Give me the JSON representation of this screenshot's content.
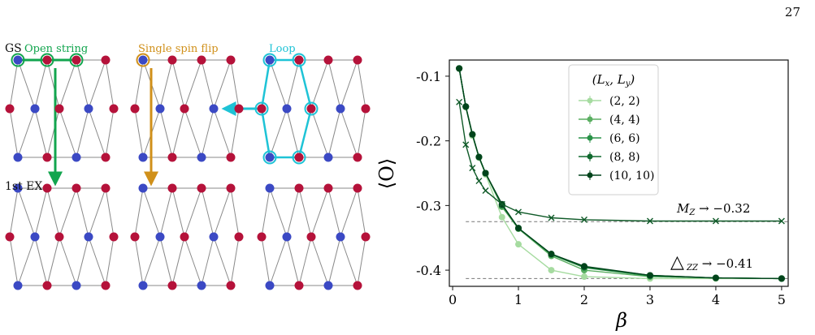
{
  "page_number": "27",
  "panel_a": {
    "gs_label": "GS",
    "ex_label": "1st EX",
    "open_string_label": "Open string",
    "spin_flip_label": "Single spin flip",
    "loop_label": "Loop",
    "colors": {
      "red_site": "#b5123a",
      "blue_site": "#3b49c4",
      "bond": "#8a8a8a",
      "open_string": "#12a54e",
      "spin_flip": "#d0901a",
      "loop": "#1ec3d6"
    }
  },
  "chart_data": {
    "type": "line",
    "xlabel": "β",
    "ylabel": "⟨O⟩",
    "xlim": [
      -0.05,
      5.1
    ],
    "ylim": [
      -0.425,
      -0.075
    ],
    "xticks": [
      0,
      1,
      2,
      3,
      4,
      5
    ],
    "yticks": [
      -0.1,
      -0.2,
      -0.3,
      -0.4
    ],
    "ytick_labels": [
      "-0.1",
      "-0.2",
      "-0.3",
      "-0.4"
    ],
    "legend": {
      "title": "(Lx, Ly)",
      "placement": "top-center",
      "entries": [
        "(2, 2)",
        "(4, 4)",
        "(6, 6)",
        "(8, 8)",
        "(10, 10)"
      ]
    },
    "annotations": [
      {
        "text": "M_Z → −0.32",
        "value": -0.325
      },
      {
        "text": "△_ZZ → −0.41",
        "value": -0.413
      }
    ],
    "series": [
      {
        "name": "(2, 2)",
        "marker": "circle",
        "color": "#a6dba0",
        "x": [
          0.1,
          0.2,
          0.3,
          0.4,
          0.5,
          0.75,
          1.0,
          1.5,
          2.0,
          3.0,
          4.0,
          5.0
        ],
        "y": [
          -0.088,
          -0.148,
          -0.192,
          -0.226,
          -0.252,
          -0.318,
          -0.36,
          -0.4,
          -0.41,
          -0.413,
          -0.413,
          -0.413
        ]
      },
      {
        "name": "(4, 4)",
        "marker": "circle",
        "color": "#5aae61",
        "x": [
          0.1,
          0.2,
          0.3,
          0.4,
          0.5,
          0.75,
          1.0,
          1.5,
          2.0,
          3.0,
          4.0,
          5.0
        ],
        "y": [
          -0.088,
          -0.147,
          -0.19,
          -0.225,
          -0.25,
          -0.302,
          -0.336,
          -0.378,
          -0.4,
          -0.41,
          -0.412,
          -0.413
        ]
      },
      {
        "name": "(6, 6)",
        "marker": "circle",
        "color": "#2a9248",
        "x": [
          0.1,
          0.2,
          0.3,
          0.4,
          0.5,
          0.75,
          1.0,
          1.5,
          2.0,
          3.0,
          4.0,
          5.0
        ],
        "y": [
          -0.088,
          -0.147,
          -0.19,
          -0.225,
          -0.25,
          -0.3,
          -0.335,
          -0.376,
          -0.396,
          -0.409,
          -0.412,
          -0.413
        ]
      },
      {
        "name": "(8, 8)",
        "marker": "circle",
        "color": "#10692e",
        "x": [
          0.1,
          0.2,
          0.3,
          0.4,
          0.5,
          0.75,
          1.0,
          1.5,
          2.0,
          3.0,
          4.0,
          5.0
        ],
        "y": [
          -0.088,
          -0.147,
          -0.19,
          -0.225,
          -0.25,
          -0.299,
          -0.335,
          -0.375,
          -0.395,
          -0.408,
          -0.412,
          -0.413
        ]
      },
      {
        "name": "(10, 10)",
        "marker": "circle",
        "color": "#00441b",
        "x": [
          0.1,
          0.2,
          0.3,
          0.4,
          0.5,
          0.75,
          1.0,
          1.5,
          2.0,
          3.0,
          4.0,
          5.0
        ],
        "y": [
          -0.088,
          -0.147,
          -0.19,
          -0.225,
          -0.25,
          -0.298,
          -0.335,
          -0.375,
          -0.394,
          -0.408,
          -0.412,
          -0.413
        ]
      },
      {
        "name": "M_Z",
        "marker": "cross",
        "color": "#0f5a28",
        "x": [
          0.1,
          0.2,
          0.3,
          0.4,
          0.5,
          0.75,
          1.0,
          1.5,
          2.0,
          3.0,
          4.0,
          5.0
        ],
        "y": [
          -0.14,
          -0.206,
          -0.242,
          -0.262,
          -0.277,
          -0.298,
          -0.31,
          -0.319,
          -0.322,
          -0.324,
          -0.324,
          -0.324
        ]
      }
    ]
  }
}
